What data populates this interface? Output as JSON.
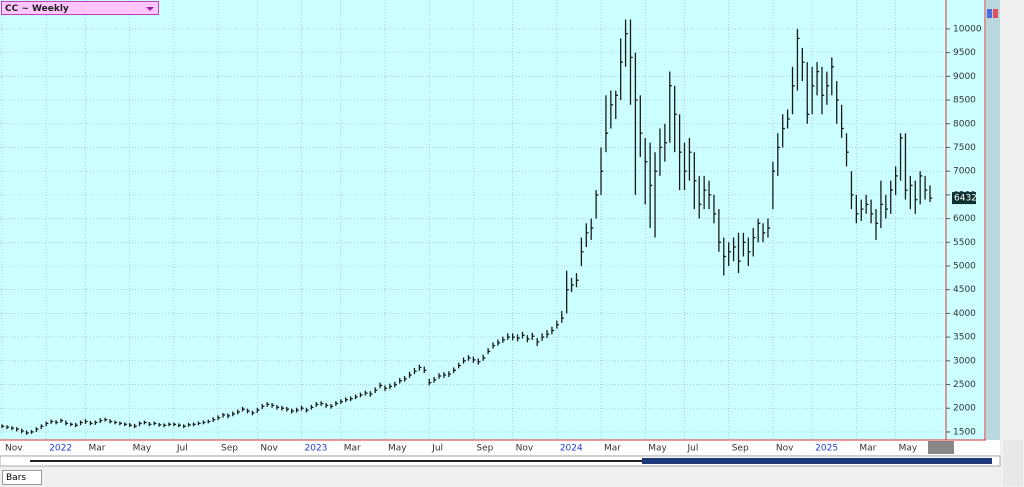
{
  "ui": {
    "title": "CC ~ Weekly",
    "bars_label": "Bars"
  },
  "chart_data": {
    "type": "hlc",
    "color": "#1a1a1a",
    "grid": true,
    "ylim": [
      1330,
      10610
    ],
    "yticks": [
      1500,
      2000,
      2500,
      3000,
      3500,
      4000,
      4500,
      5000,
      5500,
      6000,
      6500,
      7000,
      7500,
      8000,
      8500,
      9000,
      9500,
      10000
    ],
    "categories": [
      "Nov",
      null,
      null,
      null,
      null,
      null,
      null,
      null,
      null,
      "2022",
      null,
      null,
      null,
      null,
      null,
      null,
      null,
      "Mar",
      null,
      null,
      null,
      null,
      null,
      null,
      null,
      null,
      "May",
      null,
      null,
      null,
      null,
      null,
      null,
      null,
      null,
      "Jul",
      null,
      null,
      null,
      null,
      null,
      null,
      null,
      null,
      "Sep",
      null,
      null,
      null,
      null,
      null,
      null,
      null,
      "Nov",
      null,
      null,
      null,
      null,
      null,
      null,
      null,
      null,
      "2023",
      null,
      null,
      null,
      null,
      null,
      null,
      null,
      "Mar",
      null,
      null,
      null,
      null,
      null,
      null,
      null,
      null,
      "May",
      null,
      null,
      null,
      null,
      null,
      null,
      null,
      null,
      "Jul",
      null,
      null,
      null,
      null,
      null,
      null,
      null,
      null,
      "Sep",
      null,
      null,
      null,
      null,
      null,
      null,
      null,
      "Nov",
      null,
      null,
      null,
      null,
      null,
      null,
      null,
      null,
      "2024",
      null,
      null,
      null,
      null,
      null,
      null,
      null,
      null,
      "Mar",
      null,
      null,
      null,
      null,
      null,
      null,
      null,
      null,
      "May",
      null,
      null,
      null,
      null,
      null,
      null,
      null,
      "Jul",
      null,
      null,
      null,
      null,
      null,
      null,
      null,
      null,
      "Sep",
      null,
      null,
      null,
      null,
      null,
      null,
      null,
      null,
      "Nov",
      null,
      null,
      null,
      null,
      null,
      null,
      null,
      "2025",
      null,
      null,
      null,
      null,
      null,
      null,
      null,
      null,
      "Mar",
      null,
      null,
      null,
      null,
      null,
      null,
      null,
      "May",
      null,
      null,
      null,
      null,
      null,
      null,
      null
    ],
    "high": [
      1660,
      1640,
      1620,
      1600,
      1570,
      1530,
      1540,
      1600,
      1660,
      1720,
      1760,
      1750,
      1780,
      1740,
      1700,
      1690,
      1740,
      1770,
      1730,
      1740,
      1790,
      1800,
      1770,
      1740,
      1720,
      1700,
      1690,
      1670,
      1720,
      1740,
      1710,
      1720,
      1690,
      1680,
      1700,
      1700,
      1680,
      1660,
      1690,
      1700,
      1720,
      1740,
      1760,
      1810,
      1850,
      1900,
      1890,
      1930,
      1970,
      2030,
      1990,
      1950,
      2010,
      2090,
      2130,
      2110,
      2070,
      2050,
      2030,
      1990,
      2010,
      2050,
      2010,
      2070,
      2130,
      2150,
      2110,
      2090,
      2150,
      2190,
      2230,
      2250,
      2290,
      2330,
      2370,
      2360,
      2440,
      2540,
      2480,
      2520,
      2560,
      2640,
      2680,
      2770,
      2850,
      2920,
      2880,
      2620,
      2660,
      2740,
      2760,
      2780,
      2860,
      2960,
      3070,
      3120,
      3090,
      3050,
      3130,
      3270,
      3390,
      3450,
      3510,
      3580,
      3580,
      3560,
      3610,
      3540,
      3590,
      3480,
      3580,
      3650,
      3720,
      3850,
      4050,
      4900,
      4750,
      4850,
      5600,
      5900,
      6000,
      6600,
      7500,
      8600,
      8700,
      8700,
      9800,
      10200,
      10200,
      9500,
      8600,
      7700,
      7600,
      7400,
      7900,
      8000,
      9100,
      8800,
      8200,
      7600,
      7700,
      7400,
      6900,
      6900,
      6800,
      6500,
      6200,
      5600,
      5500,
      5600,
      5700,
      5700,
      5600,
      5800,
      6000,
      5900,
      6000,
      7200,
      7800,
      8200,
      8300,
      9200,
      10000,
      9600,
      9300,
      9200,
      9300,
      9200,
      9100,
      9400,
      8900,
      8400,
      7800,
      7000,
      6500,
      6400,
      6500,
      6400,
      6200,
      6800,
      6500,
      6800,
      7100,
      7800,
      7800,
      6900,
      6800,
      7000,
      6900,
      6700
    ],
    "low": [
      1580,
      1560,
      1540,
      1510,
      1470,
      1440,
      1460,
      1500,
      1560,
      1620,
      1670,
      1660,
      1690,
      1640,
      1620,
      1600,
      1640,
      1670,
      1640,
      1650,
      1690,
      1720,
      1680,
      1660,
      1640,
      1620,
      1600,
      1580,
      1620,
      1660,
      1620,
      1640,
      1610,
      1600,
      1620,
      1620,
      1600,
      1580,
      1610,
      1620,
      1640,
      1660,
      1680,
      1710,
      1750,
      1800,
      1790,
      1830,
      1870,
      1930,
      1890,
      1850,
      1900,
      1980,
      2030,
      2010,
      1970,
      1950,
      1930,
      1890,
      1910,
      1950,
      1910,
      1970,
      2030,
      2050,
      2010,
      1990,
      2050,
      2090,
      2130,
      2150,
      2190,
      2230,
      2270,
      2240,
      2320,
      2420,
      2360,
      2400,
      2440,
      2520,
      2560,
      2640,
      2720,
      2790,
      2740,
      2480,
      2540,
      2620,
      2640,
      2660,
      2740,
      2840,
      2940,
      3000,
      2960,
      2920,
      3000,
      3140,
      3260,
      3320,
      3380,
      3440,
      3430,
      3410,
      3470,
      3390,
      3440,
      3310,
      3420,
      3480,
      3560,
      3680,
      3800,
      4000,
      4450,
      4550,
      5000,
      5400,
      5550,
      6000,
      6500,
      7400,
      7900,
      8100,
      8500,
      9200,
      8400,
      6500,
      7300,
      6300,
      5800,
      5600,
      6900,
      7200,
      7600,
      7400,
      6600,
      6600,
      6800,
      6200,
      6000,
      6200,
      6200,
      5900,
      5300,
      4800,
      5000,
      5100,
      4850,
      5200,
      5000,
      5200,
      5500,
      5500,
      5600,
      6200,
      6900,
      7500,
      7900,
      8200,
      8700,
      8900,
      8000,
      8200,
      8600,
      8200,
      8400,
      8600,
      8000,
      7700,
      7100,
      6200,
      5900,
      5950,
      6100,
      5900,
      5550,
      5800,
      6000,
      6100,
      6500,
      6800,
      6400,
      6200,
      6100,
      6300,
      6400,
      6350
    ],
    "close": [
      1620,
      1600,
      1580,
      1560,
      1520,
      1480,
      1500,
      1560,
      1620,
      1680,
      1720,
      1700,
      1740,
      1680,
      1660,
      1640,
      1700,
      1720,
      1680,
      1700,
      1740,
      1760,
      1720,
      1700,
      1680,
      1660,
      1640,
      1620,
      1680,
      1700,
      1660,
      1680,
      1650,
      1640,
      1660,
      1660,
      1640,
      1620,
      1650,
      1660,
      1680,
      1700,
      1720,
      1760,
      1800,
      1860,
      1840,
      1880,
      1920,
      1980,
      1940,
      1900,
      1960,
      2040,
      2080,
      2060,
      2020,
      2000,
      1980,
      1940,
      1960,
      2000,
      1960,
      2020,
      2080,
      2100,
      2060,
      2040,
      2100,
      2140,
      2180,
      2200,
      2240,
      2280,
      2320,
      2300,
      2380,
      2480,
      2420,
      2460,
      2500,
      2580,
      2620,
      2700,
      2780,
      2860,
      2800,
      2540,
      2600,
      2680,
      2700,
      2720,
      2800,
      2900,
      3000,
      3060,
      3020,
      2980,
      3060,
      3200,
      3320,
      3380,
      3440,
      3500,
      3500,
      3480,
      3540,
      3460,
      3520,
      3400,
      3500,
      3560,
      3640,
      3760,
      3900,
      4500,
      4600,
      4700,
      5300,
      5700,
      5800,
      6500,
      7000,
      7800,
      8400,
      8600,
      9300,
      9900,
      9400,
      8500,
      7800,
      7200,
      6700,
      7000,
      7500,
      7600,
      8800,
      8200,
      7400,
      7000,
      7400,
      6800,
      6300,
      6600,
      6500,
      6100,
      5500,
      5200,
      5300,
      5400,
      5100,
      5500,
      5300,
      5600,
      5900,
      5700,
      5800,
      7000,
      7500,
      7900,
      8100,
      8800,
      9800,
      9300,
      8200,
      8800,
      9100,
      8600,
      8800,
      9200,
      8500,
      7900,
      7400,
      6500,
      6100,
      6200,
      6300,
      6100,
      5900,
      6300,
      6200,
      6600,
      6900,
      7700,
      6600,
      6700,
      6400,
      6900,
      6600,
      6432
    ]
  }
}
